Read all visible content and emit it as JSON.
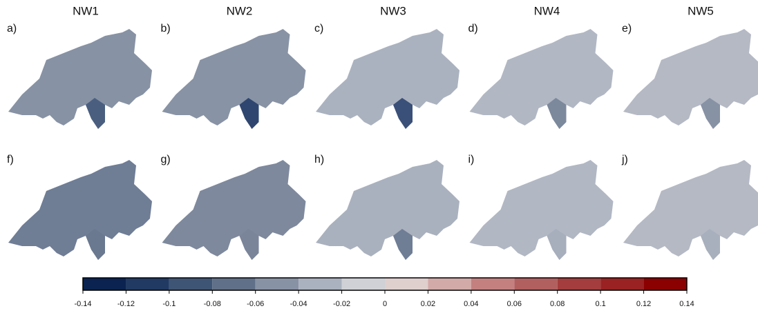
{
  "columns": [
    "NW1",
    "NW2",
    "NW3",
    "NW4",
    "NW5"
  ],
  "panels": [
    {
      "label": "a)",
      "fill": "#8792a4",
      "accent": "#4a5f80"
    },
    {
      "label": "b)",
      "fill": "#8893a5",
      "accent": "#2f4670"
    },
    {
      "label": "c)",
      "fill": "#abb2bf",
      "accent": "#3a5078"
    },
    {
      "label": "d)",
      "fill": "#b1b7c3",
      "accent": "#7c889c"
    },
    {
      "label": "e)",
      "fill": "#b4b9c4",
      "accent": "#8792a5"
    },
    {
      "label": "f)",
      "fill": "#6f7d95",
      "accent": "#6a7890"
    },
    {
      "label": "g)",
      "fill": "#7e899d",
      "accent": "#7a859a"
    },
    {
      "label": "h)",
      "fill": "#aab1be",
      "accent": "#6f7d95"
    },
    {
      "label": "i)",
      "fill": "#b1b7c3",
      "accent": "#a7aebc"
    },
    {
      "label": "j)",
      "fill": "#b4b9c4",
      "accent": "#a9b0bd"
    }
  ],
  "colorbar": {
    "lim": [
      -0.14,
      0.14
    ],
    "ticks": [
      -0.14,
      -0.12,
      -0.1,
      -0.08,
      -0.06,
      -0.04,
      -0.02,
      0,
      0.02,
      0.04,
      0.06,
      0.08,
      0.1,
      0.12,
      0.14
    ],
    "colors": [
      "#0a2350",
      "#203a63",
      "#3f5575",
      "#607088",
      "#8792a5",
      "#aab1bf",
      "#cfd1d6",
      "#dfcfcd",
      "#d2aaa8",
      "#c4807f",
      "#b25f5f",
      "#a43d3d",
      "#9a2222",
      "#8b0000"
    ]
  }
}
